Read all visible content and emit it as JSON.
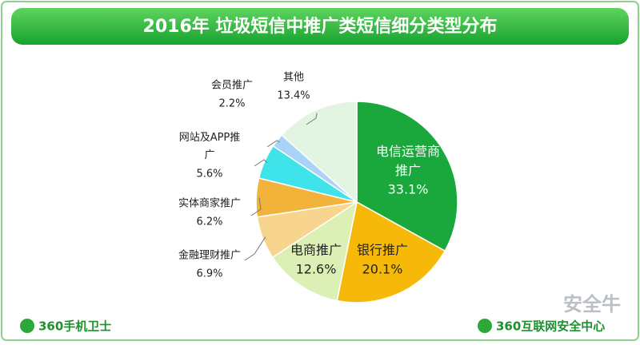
{
  "chart_data": {
    "type": "pie",
    "title": "2016年 垃圾短信中推广类短信细分类型分布",
    "categories": [
      "电信运营商推广",
      "银行推广",
      "电商推广",
      "金融理财推广",
      "实体商家推广",
      "网站及APP推广",
      "会员推广",
      "其他"
    ],
    "values": [
      33.1,
      20.1,
      12.6,
      6.9,
      6.2,
      5.6,
      2.2,
      13.4
    ],
    "value_labels": [
      "33.1%",
      "20.1%",
      "12.6%",
      "6.9%",
      "6.2%",
      "5.6%",
      "2.2%",
      "13.4%"
    ],
    "colors": [
      "#1aa83c",
      "#f6b90a",
      "#dcefb4",
      "#f8d58e",
      "#f1b33a",
      "#3fe3ea",
      "#a9d4f7",
      "#e2f4e2"
    ]
  },
  "footer": {
    "left_logo": "360手机卫士",
    "right_logo": "360互联网安全中心",
    "watermark": "安全牛"
  }
}
